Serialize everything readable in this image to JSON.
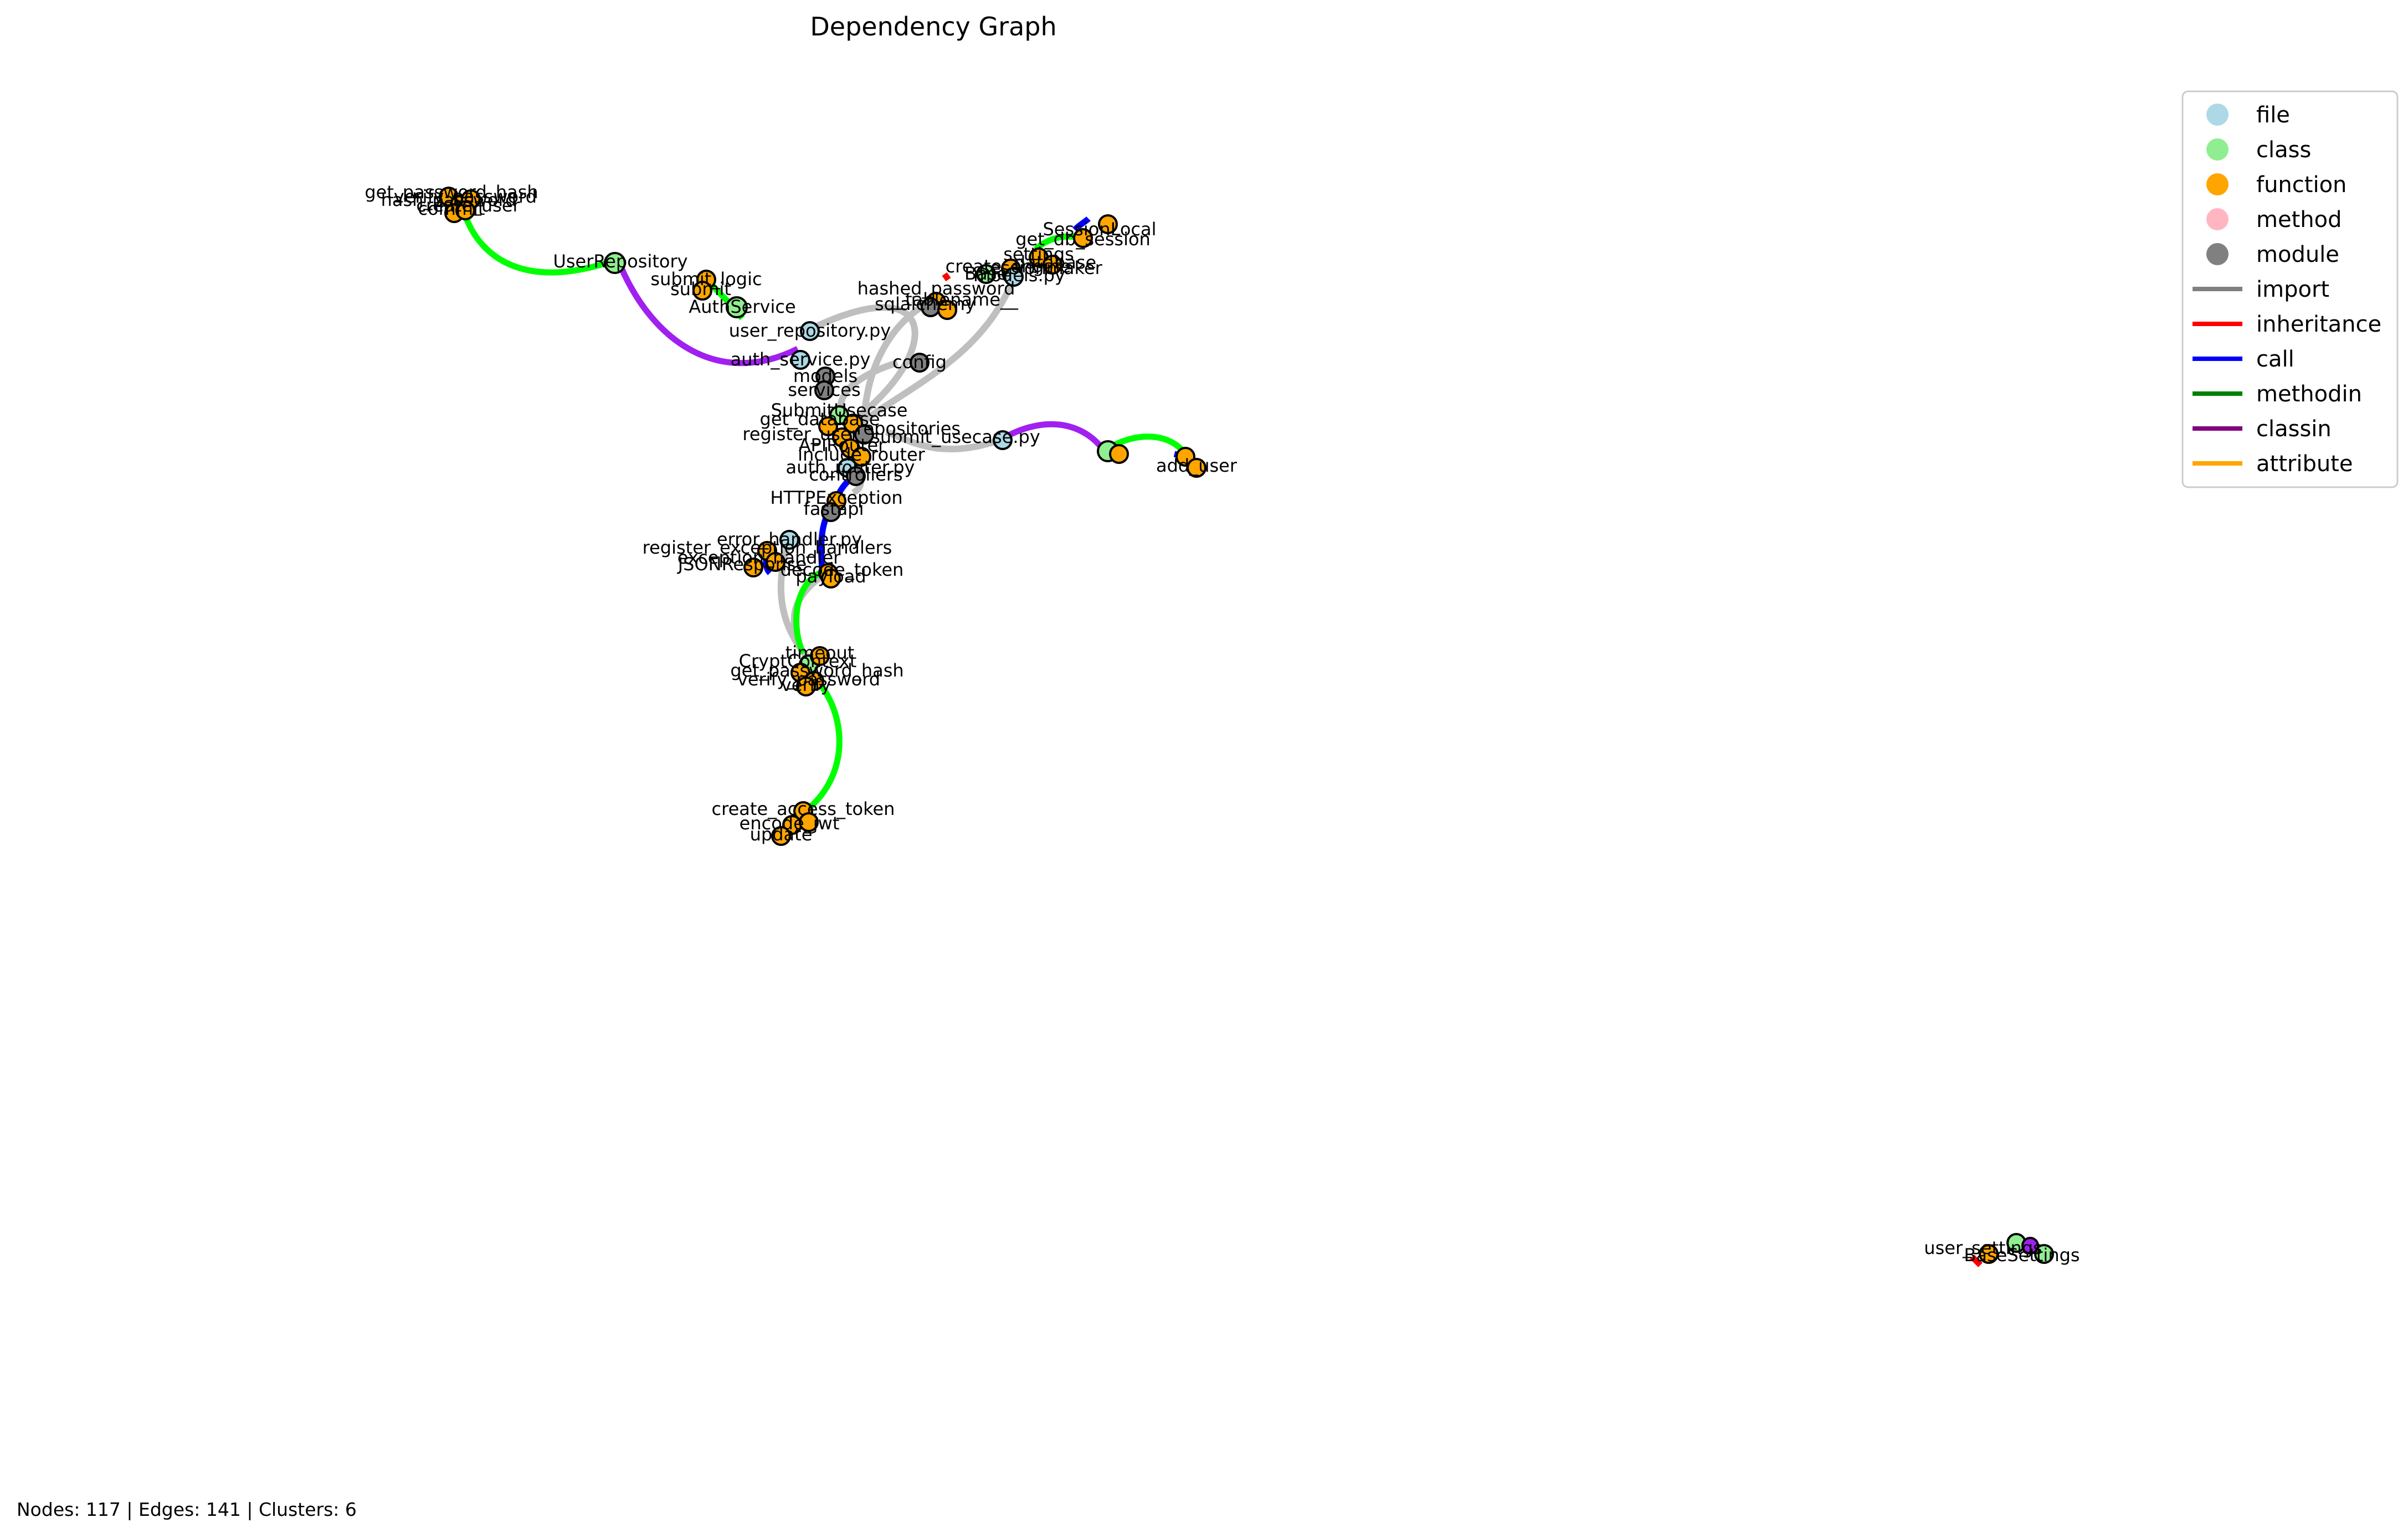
{
  "title": "Dependency Graph",
  "footer": "Nodes: 117 | Edges: 141 | Clusters: 6",
  "legend": {
    "node_types": [
      {
        "label": "file",
        "color": "#add8e6"
      },
      {
        "label": "class",
        "color": "#90ee90"
      },
      {
        "label": "function",
        "color": "#ffa500"
      },
      {
        "label": "method",
        "color": "#ffb6c1"
      },
      {
        "label": "module",
        "color": "#808080"
      }
    ],
    "edge_types": [
      {
        "label": "import",
        "color": "#808080"
      },
      {
        "label": "inheritance",
        "color": "#ff0000"
      },
      {
        "label": "call",
        "color": "#0000ff"
      },
      {
        "label": "methodin",
        "color": "#008000"
      },
      {
        "label": "classin",
        "color": "#800080"
      },
      {
        "label": "attribute",
        "color": "#ffa500"
      }
    ]
  },
  "nodes": [
    {
      "label": "get_password_hash",
      "type": "function"
    },
    {
      "label": "hash_password",
      "type": "function"
    },
    {
      "label": "verify_password",
      "type": "function"
    },
    {
      "label": "commit",
      "type": "function"
    },
    {
      "label": "create_user",
      "type": "function"
    },
    {
      "label": "UserRepository",
      "type": "class"
    },
    {
      "label": "submit_logic",
      "type": "function"
    },
    {
      "label": "submit",
      "type": "function"
    },
    {
      "label": "AuthService",
      "type": "class"
    },
    {
      "label": "user_repository.py",
      "type": "file"
    },
    {
      "label": "auth_service.py",
      "type": "file"
    },
    {
      "label": "models",
      "type": "module"
    },
    {
      "label": "services",
      "type": "module"
    },
    {
      "label": "config",
      "type": "module"
    },
    {
      "label": "SessionLocal",
      "type": "function"
    },
    {
      "label": "get_db_session",
      "type": "function"
    },
    {
      "label": "settings",
      "type": "function"
    },
    {
      "label": "create_engine",
      "type": "function"
    },
    {
      "label": "Base",
      "type": "class"
    },
    {
      "label": "database",
      "type": "function"
    },
    {
      "label": "sessionmaker",
      "type": "function"
    },
    {
      "label": "models.py",
      "type": "file"
    },
    {
      "label": "hashed_password",
      "type": "function"
    },
    {
      "label": "sqlalchemy",
      "type": "module"
    },
    {
      "label": "__tablename__",
      "type": "function"
    },
    {
      "label": "SubmitUsecase",
      "type": "class"
    },
    {
      "label": "get_database",
      "type": "function"
    },
    {
      "label": "repositories",
      "type": "module"
    },
    {
      "label": "register_user",
      "type": "function"
    },
    {
      "label": "APIRouter",
      "type": "function"
    },
    {
      "label": "submit_usecase.py",
      "type": "file"
    },
    {
      "label": "include_router",
      "type": "function"
    },
    {
      "label": "auth_router.py",
      "type": "file"
    },
    {
      "label": "controllers",
      "type": "module"
    },
    {
      "label": "HTTPException",
      "type": "function"
    },
    {
      "label": "fastapi",
      "type": "module"
    },
    {
      "label": "error_handler.py",
      "type": "file"
    },
    {
      "label": "register_exception_handlers",
      "type": "function"
    },
    {
      "label": "exception_handler",
      "type": "function"
    },
    {
      "label": "JSONResponse",
      "type": "function"
    },
    {
      "label": "decode_token",
      "type": "function"
    },
    {
      "label": "payload",
      "type": "function"
    },
    {
      "label": "CryptContext",
      "type": "class"
    },
    {
      "label": "timeout",
      "type": "function"
    },
    {
      "label": "get_password_hash",
      "type": "function"
    },
    {
      "label": "verify_password",
      "type": "function"
    },
    {
      "label": "verify",
      "type": "function"
    },
    {
      "label": "create_access_token",
      "type": "function"
    },
    {
      "label": "encode_jwt",
      "type": "function"
    },
    {
      "label": "update",
      "type": "function"
    },
    {
      "label": "add_user",
      "type": "function"
    },
    {
      "label": "user_settings",
      "type": "class"
    },
    {
      "label": "BaseSettings",
      "type": "class"
    }
  ]
}
